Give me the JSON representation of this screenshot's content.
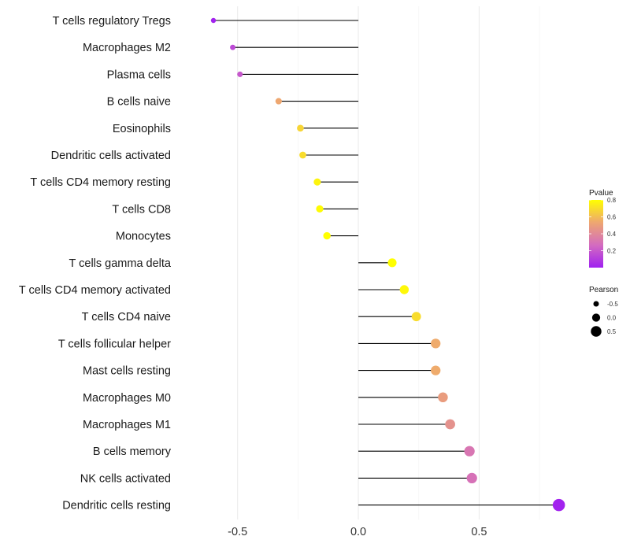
{
  "chart_data": {
    "type": "lollipop",
    "xlim": [
      -0.75,
      0.88
    ],
    "x_ticks": [
      -0.5,
      0.0,
      0.5
    ],
    "x_tick_labels": [
      "-0.5",
      "0.0",
      "0.5"
    ],
    "x_minor_grid": [
      -0.25,
      0.25,
      0.75
    ],
    "grid": true,
    "categories": [
      "T cells regulatory  Tregs",
      "Macrophages M2",
      "Plasma cells",
      "B cells naive",
      "Eosinophils",
      "Dendritic cells activated",
      "T cells CD4 memory resting",
      "T cells CD8",
      "Monocytes",
      "T cells gamma delta",
      "T cells CD4 memory activated",
      "T cells CD4 naive",
      "T cells follicular helper",
      "Mast cells resting",
      "Macrophages M0",
      "Macrophages M1",
      "B cells memory",
      "NK cells activated",
      "Dendritic cells resting"
    ],
    "values": [
      -0.6,
      -0.52,
      -0.49,
      -0.33,
      -0.24,
      -0.23,
      -0.17,
      -0.16,
      -0.13,
      0.14,
      0.19,
      0.24,
      0.32,
      0.32,
      0.35,
      0.38,
      0.46,
      0.47,
      0.83
    ],
    "pvalues": [
      0.01,
      0.15,
      0.2,
      0.55,
      0.68,
      0.7,
      0.77,
      0.79,
      0.82,
      0.84,
      0.78,
      0.7,
      0.56,
      0.56,
      0.5,
      0.45,
      0.32,
      0.3,
      0.01
    ],
    "legend": {
      "pvalue": {
        "title": "Pvalue",
        "range": [
          0.0,
          0.8
        ],
        "ticks": [
          0.2,
          0.4,
          0.6,
          0.8
        ],
        "tick_labels": [
          "0.2",
          "0.4",
          "0.6",
          "0.8"
        ],
        "colors": [
          "#a020f0",
          "#d36bc0",
          "#eea770",
          "#ffff00"
        ]
      },
      "pearson": {
        "title": "Pearson",
        "values": [
          -0.5,
          0.0,
          0.5
        ],
        "labels": [
          "-0.5",
          "0.0",
          "0.5"
        ]
      }
    },
    "colors": {
      "stem": "#000000",
      "grid": "#ebebeb",
      "text": "#1a1a1a"
    }
  }
}
